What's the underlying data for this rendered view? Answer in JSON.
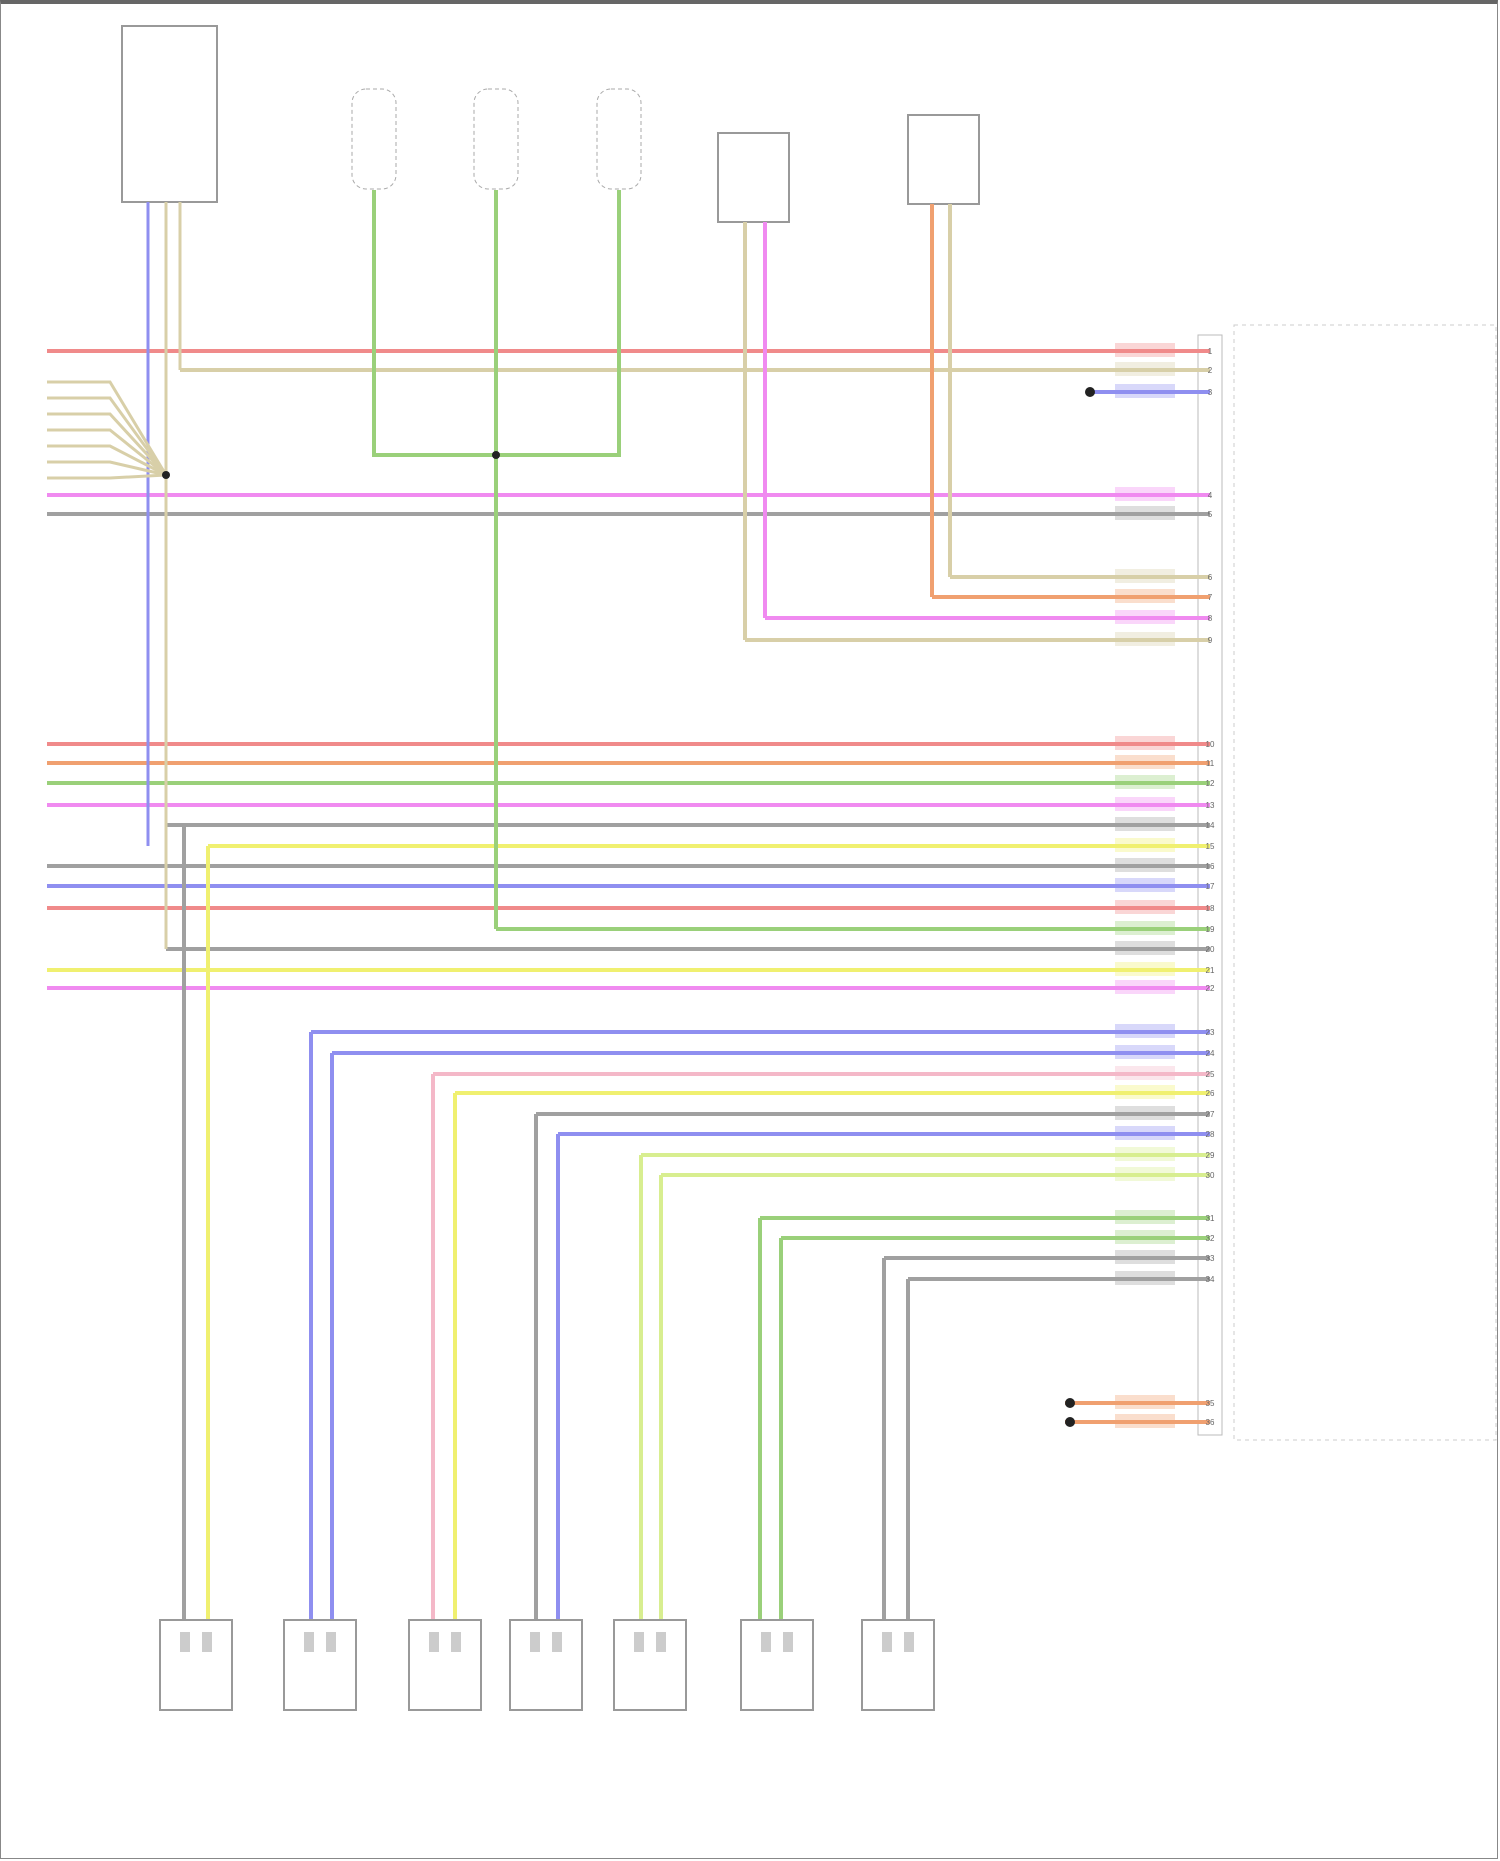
{
  "diagram": {
    "main_module_label": "",
    "footer": "",
    "top_components": [
      {
        "id": "switch-module",
        "label": ""
      },
      {
        "id": "sensor-1",
        "label": ""
      },
      {
        "id": "sensor-2",
        "label": ""
      },
      {
        "id": "sensor-3",
        "label": ""
      },
      {
        "id": "module-a",
        "label": ""
      },
      {
        "id": "module-b",
        "label": ""
      }
    ],
    "bottom_components": [
      {
        "label": ""
      },
      {
        "label": ""
      },
      {
        "label": ""
      },
      {
        "label": ""
      },
      {
        "label": ""
      },
      {
        "label": ""
      },
      {
        "label": ""
      }
    ],
    "colors": {
      "red": "#f08a8a",
      "tan": "#d8cfa8",
      "blue": "#8f8ff0",
      "pink": "#f08af0",
      "gray": "#a0a0a0",
      "orange": "#f0a070",
      "green": "#9ad07a",
      "yellow": "#f0f070",
      "ygreen": "#d8ee90",
      "lpink": "#f4b8c8"
    },
    "wires": [
      {
        "pin": "1",
        "color": "red",
        "label": ""
      },
      {
        "pin": "2",
        "color": "tan",
        "label": ""
      },
      {
        "pin": "3",
        "color": "blue",
        "label": ""
      },
      {
        "pin": "4",
        "color": "pink",
        "label": ""
      },
      {
        "pin": "5",
        "color": "gray",
        "label": ""
      },
      {
        "pin": "6",
        "color": "tan",
        "label": ""
      },
      {
        "pin": "7",
        "color": "orange",
        "label": ""
      },
      {
        "pin": "8",
        "color": "pink",
        "label": ""
      },
      {
        "pin": "9",
        "color": "tan",
        "label": ""
      },
      {
        "pin": "10",
        "color": "red",
        "label": ""
      },
      {
        "pin": "11",
        "color": "orange",
        "label": ""
      },
      {
        "pin": "12",
        "color": "green",
        "label": ""
      },
      {
        "pin": "13",
        "color": "pink",
        "label": ""
      },
      {
        "pin": "14",
        "color": "gray",
        "label": ""
      },
      {
        "pin": "15",
        "color": "yellow",
        "label": ""
      },
      {
        "pin": "16",
        "color": "gray",
        "label": ""
      },
      {
        "pin": "17",
        "color": "blue",
        "label": ""
      },
      {
        "pin": "18",
        "color": "red",
        "label": ""
      },
      {
        "pin": "19",
        "color": "green",
        "label": ""
      },
      {
        "pin": "20",
        "color": "gray",
        "label": ""
      },
      {
        "pin": "21",
        "color": "yellow",
        "label": ""
      },
      {
        "pin": "22",
        "color": "pink",
        "label": ""
      },
      {
        "pin": "23",
        "color": "blue",
        "label": ""
      },
      {
        "pin": "24",
        "color": "blue",
        "label": ""
      },
      {
        "pin": "25",
        "color": "lpink",
        "label": ""
      },
      {
        "pin": "26",
        "color": "yellow",
        "label": ""
      },
      {
        "pin": "27",
        "color": "gray",
        "label": ""
      },
      {
        "pin": "28",
        "color": "blue",
        "label": ""
      },
      {
        "pin": "29",
        "color": "ygreen",
        "label": ""
      },
      {
        "pin": "30",
        "color": "ygreen",
        "label": ""
      },
      {
        "pin": "31",
        "color": "green",
        "label": ""
      },
      {
        "pin": "32",
        "color": "green",
        "label": ""
      },
      {
        "pin": "33",
        "color": "gray",
        "label": ""
      },
      {
        "pin": "34",
        "color": "gray",
        "label": ""
      },
      {
        "pin": "35",
        "color": "orange",
        "label": ""
      },
      {
        "pin": "36",
        "color": "orange",
        "label": ""
      }
    ]
  }
}
